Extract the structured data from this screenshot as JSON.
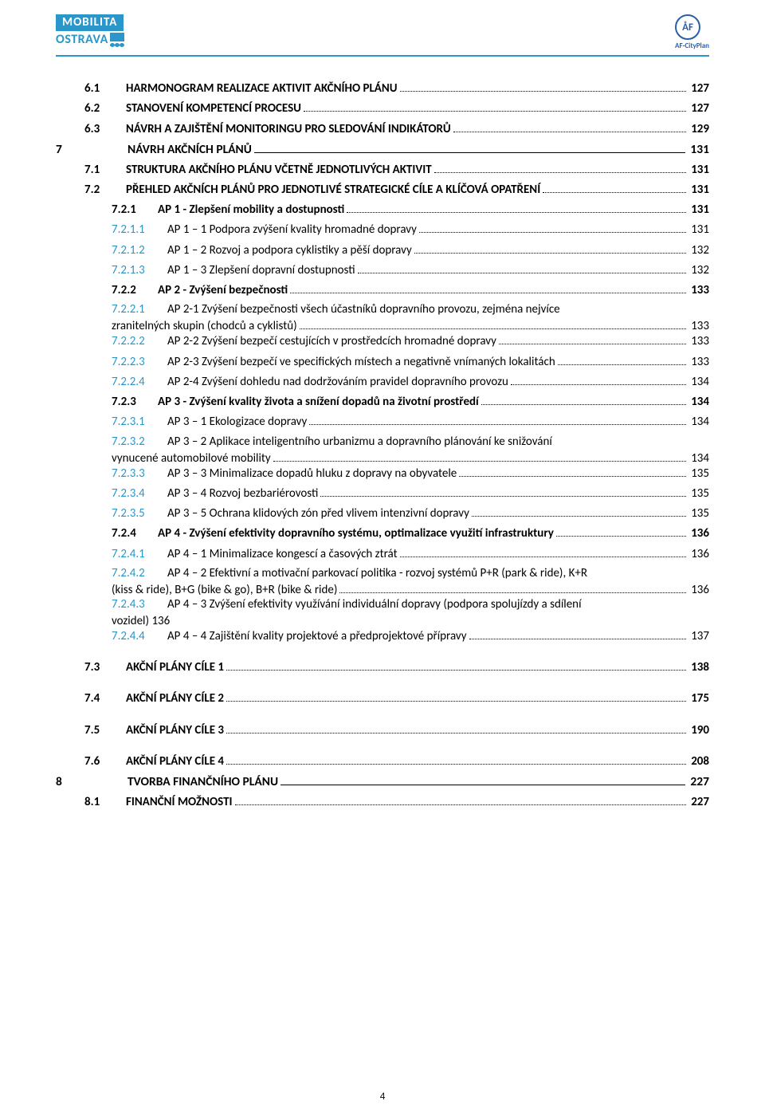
{
  "colors": {
    "accent": "#2a96c9",
    "af_blue": "#2a5fa8",
    "text": "#000000",
    "background": "#ffffff"
  },
  "header": {
    "logo_top": "MOBILITA",
    "logo_bottom": "OSTRAVA",
    "af_text": "ÅF",
    "af_label": "AF-CityPlan"
  },
  "page_number": "4",
  "toc": [
    {
      "level": 1,
      "num": "6.1",
      "title": "HARMONOGRAM REALIZACE AKTIVIT AKČNÍHO PLÁNU",
      "page": "127"
    },
    {
      "level": 1,
      "num": "6.2",
      "title": "STANOVENÍ KOMPETENCÍ PROCESU",
      "page": "127"
    },
    {
      "level": 1,
      "num": "6.3",
      "title": "NÁVRH A ZAJIŠTĚNÍ MONITORINGU PRO SLEDOVÁNÍ INDIKÁTORŮ",
      "page": "129"
    },
    {
      "level": 0,
      "num": "7",
      "title": "NÁVRH AKČNÍCH PLÁNŮ",
      "page": "131",
      "leader": "solid"
    },
    {
      "level": 1,
      "num": "7.1",
      "title": "STRUKTURA AKČNÍHO PLÁNU VČETNĚ JEDNOTLIVÝCH AKTIVIT",
      "page": "131"
    },
    {
      "level": 1,
      "num": "7.2",
      "title": "PŘEHLED AKČNÍCH PLÁNŮ PRO JEDNOTLIVÉ STRATEGICKÉ CÍLE A KLÍČOVÁ OPATŘENÍ",
      "page": "131"
    },
    {
      "level": 2,
      "num": "7.2.1",
      "title": "AP 1 - Zlepšení mobility a dostupnosti",
      "page": "131"
    },
    {
      "level": 3,
      "num": "7.2.1.1",
      "title": "AP 1 – 1 Podpora zvýšení kvality hromadné dopravy",
      "page": "131"
    },
    {
      "level": 3,
      "num": "7.2.1.2",
      "title": "AP 1 – 2 Rozvoj a podpora cyklistiky a pěší dopravy",
      "page": "132"
    },
    {
      "level": 3,
      "num": "7.2.1.3",
      "title": "AP 1 – 3 Zlepšení dopravní dostupnosti",
      "page": "132"
    },
    {
      "level": 2,
      "num": "7.2.2",
      "title": "AP 2 - Zvýšení bezpečnosti",
      "page": "133"
    },
    {
      "level": 3,
      "num": "7.2.2.1",
      "title_lines": [
        "AP 2-1 Zvýšení bezpečnosti všech účastníků dopravního provozu, zejména nejvíce",
        "zranitelných skupin (chodců a cyklistů)"
      ],
      "page": "133",
      "wrap": true
    },
    {
      "level": 3,
      "num": "7.2.2.2",
      "title": "AP 2-2 Zvýšení bezpečí cestujících v prostředcích hromadné dopravy",
      "page": "133"
    },
    {
      "level": 3,
      "num": "7.2.2.3",
      "title": "AP 2-3 Zvýšení bezpečí ve specifických místech a negativně vnímaných lokalitách",
      "page": "133"
    },
    {
      "level": 3,
      "num": "7.2.2.4",
      "title": "AP 2-4 Zvýšení dohledu nad dodržováním pravidel dopravního provozu",
      "page": "134"
    },
    {
      "level": 2,
      "num": "7.2.3",
      "title": "AP 3 - Zvýšení kvality života a snížení dopadů na životní prostředí",
      "page": "134"
    },
    {
      "level": 3,
      "num": "7.2.3.1",
      "title": "AP 3 – 1 Ekologizace dopravy",
      "page": "134"
    },
    {
      "level": 3,
      "num": "7.2.3.2",
      "title_lines": [
        "AP 3 – 2 Aplikace inteligentního urbanizmu a dopravního plánování ke snižování",
        "vynucené automobilové mobility"
      ],
      "page": "134",
      "wrap": true
    },
    {
      "level": 3,
      "num": "7.2.3.3",
      "title": "AP 3 – 3 Minimalizace dopadů hluku z dopravy na obyvatele",
      "page": "135"
    },
    {
      "level": 3,
      "num": "7.2.3.4",
      "title": "AP 3 – 4 Rozvoj bezbariérovosti",
      "page": "135"
    },
    {
      "level": 3,
      "num": "7.2.3.5",
      "title": "AP 3 – 5 Ochrana klidových zón před vlivem intenzivní dopravy",
      "page": "135"
    },
    {
      "level": 2,
      "num": "7.2.4",
      "title": "AP 4 - Zvýšení efektivity dopravního systému, optimalizace využití infrastruktury",
      "page": "136"
    },
    {
      "level": 3,
      "num": "7.2.4.1",
      "title": "AP 4 – 1 Minimalizace kongescí a časových ztrát",
      "page": "136"
    },
    {
      "level": 3,
      "num": "7.2.4.2",
      "title_lines": [
        "AP 4 – 2 Efektivní a motivační parkovací politika - rozvoj systémů P+R (park & ride), K+R",
        "(kiss & ride), B+G (bike & go), B+R (bike & ride)"
      ],
      "page": "136",
      "wrap": true
    },
    {
      "level": 3,
      "num": "7.2.4.3",
      "title_lines": [
        "AP 4 – 3 Zvýšení efektivity využívání individuální dopravy (podpora spolujízdy a sdílení",
        "vozidel)   136"
      ],
      "page": "",
      "wrap": true,
      "no_leader": true
    },
    {
      "level": 3,
      "num": "7.2.4.4",
      "title": "AP 4 – 4 Zajištění kvality projektové a předprojektové přípravy",
      "page": "137"
    },
    {
      "level": 1,
      "num": "7.3",
      "title": "AKČNÍ PLÁNY CÍLE 1",
      "page": "138",
      "gap_before": true
    },
    {
      "level": 1,
      "num": "7.4",
      "title": "AKČNÍ PLÁNY CÍLE 2",
      "page": "175",
      "gap_before": true
    },
    {
      "level": 1,
      "num": "7.5",
      "title": "AKČNÍ PLÁNY CÍLE 3",
      "page": "190",
      "gap_before": true
    },
    {
      "level": 1,
      "num": "7.6",
      "title": "AKČNÍ PLÁNY CÍLE 4",
      "page": "208",
      "gap_before": true
    },
    {
      "level": 0,
      "num": "8",
      "title": "TVORBA FINANČNÍHO PLÁNU",
      "page": "227",
      "leader": "solid"
    },
    {
      "level": 1,
      "num": "8.1",
      "title": "FINANČNÍ MOŽNOSTI",
      "page": "227"
    }
  ]
}
